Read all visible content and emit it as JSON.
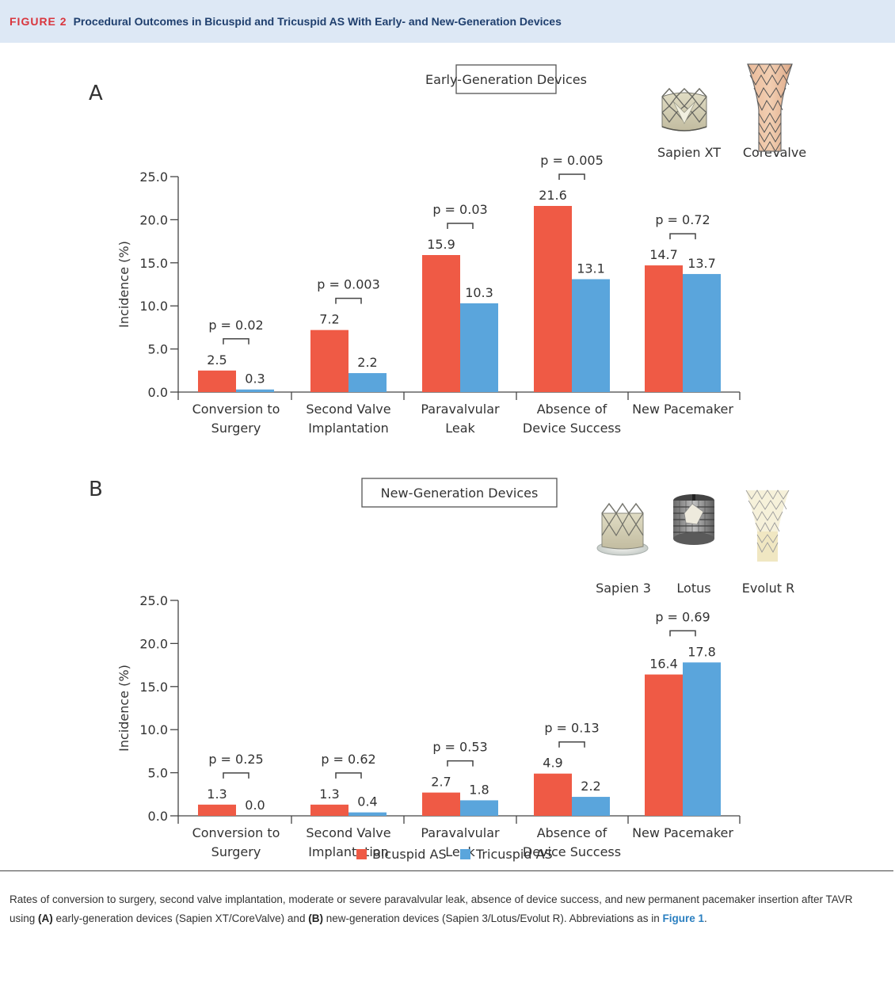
{
  "header": {
    "label": "FIGURE 2",
    "title": "Procedural Outcomes in Bicuspid and Tricuspid AS With Early- and New-Generation Devices"
  },
  "colors": {
    "bicuspid": "#ef5a45",
    "tricuspid": "#5aa5dc",
    "header_bg": "#dde8f5"
  },
  "legend": {
    "bicuspid": "Bicuspid AS",
    "tricuspid": "Tricuspid AS"
  },
  "chart_data": [
    {
      "type": "bar",
      "panel": "A",
      "title": "Early-Generation Devices",
      "ylabel": "Incidence (%)",
      "ylim": [
        0,
        25
      ],
      "yticks": [
        "0.0",
        "5.0",
        "10.0",
        "15.0",
        "20.0",
        "25.0"
      ],
      "categories": [
        [
          "Conversion to",
          "Surgery"
        ],
        [
          "Second Valve",
          "Implantation"
        ],
        [
          "Paravalvular",
          "Leak"
        ],
        [
          "Absence of",
          "Device Success"
        ],
        [
          "New Pacemaker"
        ]
      ],
      "series": [
        {
          "name": "Bicuspid AS",
          "values": [
            2.5,
            7.2,
            15.9,
            21.6,
            14.7
          ],
          "labels": [
            "2.5",
            "7.2",
            "15.9",
            "21.6",
            "14.7"
          ]
        },
        {
          "name": "Tricuspid AS",
          "values": [
            0.3,
            2.2,
            10.3,
            13.1,
            13.7
          ],
          "labels": [
            "0.3",
            "2.2",
            "10.3",
            "13.1",
            "13.7"
          ]
        }
      ],
      "p_values": [
        "p = 0.02",
        "p = 0.003",
        "p = 0.03",
        "p = 0.005",
        "p = 0.72"
      ],
      "devices": [
        "Sapien XT",
        "CoreValve"
      ]
    },
    {
      "type": "bar",
      "panel": "B",
      "title": "New-Generation Devices",
      "ylabel": "Incidence (%)",
      "ylim": [
        0,
        25
      ],
      "yticks": [
        "0.0",
        "5.0",
        "10.0",
        "15.0",
        "20.0",
        "25.0"
      ],
      "categories": [
        [
          "Conversion to",
          "Surgery"
        ],
        [
          "Second Valve",
          "Implantation"
        ],
        [
          "Paravalvular",
          "Leak"
        ],
        [
          "Absence of",
          "Device Success"
        ],
        [
          "New Pacemaker"
        ]
      ],
      "series": [
        {
          "name": "Bicuspid AS",
          "values": [
            1.3,
            1.3,
            2.7,
            4.9,
            16.4
          ],
          "labels": [
            "1.3",
            "1.3",
            "2.7",
            "4.9",
            "16.4"
          ]
        },
        {
          "name": "Tricuspid AS",
          "values": [
            0.0,
            0.4,
            1.8,
            2.2,
            17.8
          ],
          "labels": [
            "0.0",
            "0.4",
            "1.8",
            "2.2",
            "17.8"
          ]
        }
      ],
      "p_values": [
        "p = 0.25",
        "p = 0.62",
        "p = 0.53",
        "p = 0.13",
        "p = 0.69"
      ],
      "devices": [
        "Sapien 3",
        "Lotus",
        "Evolut R"
      ]
    }
  ],
  "caption": {
    "part1": "Rates of conversion to surgery, second valve implantation, moderate or severe paravalvular leak, absence of device success, and new permanent pacemaker insertion after TAVR using ",
    "a_marker": "(A)",
    "part2": " early-generation devices (Sapien XT/CoreValve) and ",
    "b_marker": "(B)",
    "part3": " new-generation devices (Sapien 3/Lotus/Evolut R). Abbreviations as in ",
    "fig_ref": "Figure 1",
    "part4": "."
  }
}
